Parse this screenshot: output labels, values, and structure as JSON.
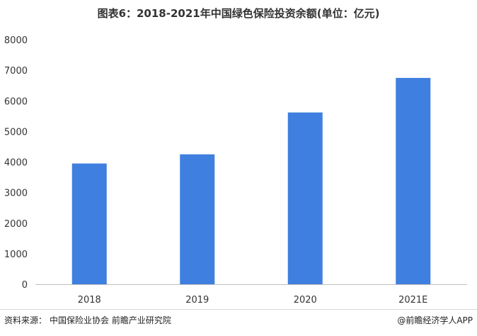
{
  "chart_data": {
    "type": "bar",
    "title": "图表6：2018-2021年中国绿色保险投资余额(单位：亿元)",
    "categories": [
      "2018",
      "2019",
      "2020",
      "2021E"
    ],
    "values": [
      3950,
      4250,
      5620,
      6750
    ],
    "ylim": [
      0,
      8000
    ],
    "yticks": [
      0,
      1000,
      2000,
      3000,
      4000,
      5000,
      6000,
      7000,
      8000
    ],
    "grid": false,
    "bar_color": "#3f7fdf"
  },
  "footer": {
    "source_label": "资料来源：",
    "source_text": "中国保险业协会 前瞻产业研究院",
    "credit": "@前瞻经济学人APP"
  }
}
